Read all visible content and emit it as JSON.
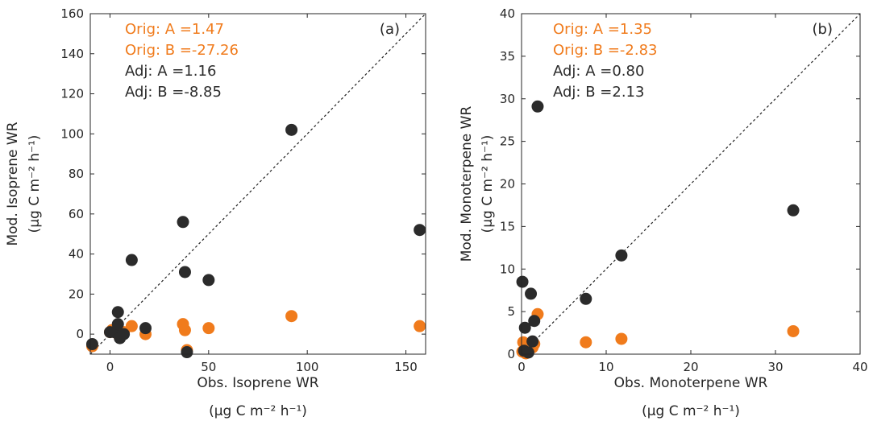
{
  "colors": {
    "orig": "#f07b1c",
    "adj": "#2b2b2b",
    "axis": "#262626"
  },
  "chart_data": [
    {
      "type": "scatter",
      "panel_label": "(a)",
      "xlabel": [
        "Obs. Isoprene WR",
        "(μg C m⁻² h⁻¹)"
      ],
      "ylabel": [
        "Mod. Isoprene WR",
        "(μg C m⁻² h⁻¹)"
      ],
      "xlim": [
        -10,
        160
      ],
      "ylim": [
        -10,
        160
      ],
      "xticks": [
        0,
        50,
        100,
        150
      ],
      "yticks": [
        0,
        20,
        40,
        60,
        80,
        100,
        120,
        140,
        160
      ],
      "reference_line": "1:1 dashed",
      "annotations": [
        {
          "text": "Orig: A =1.47",
          "series": "orig"
        },
        {
          "text": "Orig: B =-27.26",
          "series": "orig"
        },
        {
          "text": "Adj: A =1.16",
          "series": "adj"
        },
        {
          "text": "Adj: B =-8.85",
          "series": "adj"
        }
      ],
      "series": [
        {
          "key": "orig",
          "color": "#f07b1c",
          "points": [
            [
              -9,
              -6
            ],
            [
              0,
              1
            ],
            [
              1,
              2
            ],
            [
              3,
              1
            ],
            [
              4,
              0
            ],
            [
              5,
              1
            ],
            [
              7,
              1
            ],
            [
              11,
              4
            ],
            [
              18,
              0
            ],
            [
              37,
              5
            ],
            [
              38,
              2
            ],
            [
              39,
              -8
            ],
            [
              50,
              3
            ],
            [
              92,
              9
            ],
            [
              157,
              4
            ]
          ]
        },
        {
          "key": "adj",
          "color": "#2b2b2b",
          "points": [
            [
              -9,
              -5
            ],
            [
              0,
              1
            ],
            [
              2,
              1
            ],
            [
              4,
              11
            ],
            [
              4,
              5
            ],
            [
              5,
              -2
            ],
            [
              7,
              0
            ],
            [
              11,
              37
            ],
            [
              18,
              3
            ],
            [
              37,
              56
            ],
            [
              38,
              31
            ],
            [
              39,
              -9
            ],
            [
              50,
              27
            ],
            [
              92,
              102
            ],
            [
              157,
              52
            ]
          ]
        }
      ]
    },
    {
      "type": "scatter",
      "panel_label": "(b)",
      "xlabel": [
        "Obs.  Monoterpene WR",
        "(μg C m⁻² h⁻¹)"
      ],
      "ylabel": [
        "Mod. Monoterpene WR",
        "(μg C m⁻² h⁻¹)"
      ],
      "xlim": [
        0,
        40
      ],
      "ylim": [
        0,
        40
      ],
      "xticks": [
        0,
        10,
        20,
        30,
        40
      ],
      "yticks": [
        0,
        5,
        10,
        15,
        20,
        25,
        30,
        35,
        40
      ],
      "reference_line": "1:1 dashed",
      "annotations": [
        {
          "text": "Orig: A =1.35",
          "series": "orig"
        },
        {
          "text": "Orig: B =-2.83",
          "series": "orig"
        },
        {
          "text": "Adj: A =0.80",
          "series": "adj"
        },
        {
          "text": "Adj: B =2.13",
          "series": "adj"
        }
      ],
      "series": [
        {
          "key": "orig",
          "color": "#f07b1c",
          "points": [
            [
              0.1,
              0.3
            ],
            [
              0.2,
              1.4
            ],
            [
              0.5,
              0.1
            ],
            [
              0.9,
              0.6
            ],
            [
              1.3,
              0.8
            ],
            [
              1.5,
              1.2
            ],
            [
              1.9,
              4.7
            ],
            [
              7.6,
              1.4
            ],
            [
              11.8,
              1.8
            ],
            [
              32.1,
              2.7
            ]
          ]
        },
        {
          "key": "adj",
          "color": "#2b2b2b",
          "points": [
            [
              0.1,
              8.5
            ],
            [
              0.4,
              3.1
            ],
            [
              0.3,
              0.4
            ],
            [
              0.8,
              0.2
            ],
            [
              1.1,
              7.1
            ],
            [
              1.3,
              1.5
            ],
            [
              1.5,
              3.9
            ],
            [
              1.9,
              29.1
            ],
            [
              7.6,
              6.5
            ],
            [
              11.8,
              11.6
            ],
            [
              32.1,
              16.9
            ]
          ]
        }
      ]
    }
  ]
}
